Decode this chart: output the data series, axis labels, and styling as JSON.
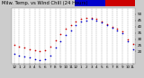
{
  "title_left": "Milw. Temp. vs Wind Chill (24 Hours)",
  "bg_color": "#cccccc",
  "plot_bg": "#ffffff",
  "temp_color": "#cc0000",
  "windchill_color": "#0000cc",
  "colorbar_blue": "#0000cc",
  "colorbar_red": "#cc0000",
  "hours": [
    0,
    1,
    2,
    3,
    4,
    5,
    6,
    7,
    8,
    9,
    10,
    11,
    12,
    13,
    14,
    15,
    16,
    17,
    18,
    19,
    20,
    21,
    22,
    23
  ],
  "temp": [
    25,
    24,
    23,
    22,
    21,
    20,
    21,
    24,
    29,
    34,
    38,
    41,
    44,
    46,
    47,
    47,
    46,
    44,
    42,
    40,
    38,
    36,
    30,
    26
  ],
  "windchill": [
    18,
    17,
    16,
    15,
    14,
    13,
    14,
    17,
    23,
    28,
    33,
    37,
    41,
    44,
    45,
    46,
    45,
    43,
    41,
    39,
    37,
    35,
    28,
    22
  ],
  "ylim": [
    10,
    55
  ],
  "yticks": [
    20,
    25,
    30,
    35,
    40,
    45,
    50
  ],
  "xtick_labels": [
    "12",
    "1",
    "2",
    "3",
    "4",
    "5",
    "6",
    "7",
    "8",
    "9",
    "10",
    "11",
    "12",
    "1",
    "2",
    "3",
    "4",
    "5",
    "6",
    "7",
    "8",
    "9",
    "10",
    "11"
  ],
  "grid_color": "#999999",
  "tick_fontsize": 3.0,
  "title_fontsize": 3.8,
  "marker_size": 1.5
}
